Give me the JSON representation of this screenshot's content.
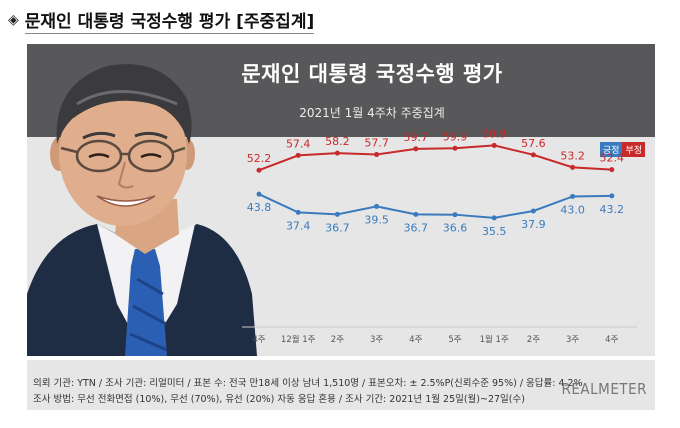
{
  "heading": {
    "marker": "◈",
    "title": "문재인 대통령 국정수행 평가 [주중집계]"
  },
  "chart_data": {
    "type": "line",
    "title": "문재인 대통령 국정수행 평가",
    "subtitle": "2021년 1월 4주차 주중집계",
    "categories": [
      "4주",
      "12월 1주",
      "2주",
      "3주",
      "4주",
      "5주",
      "1월 1주",
      "2주",
      "3주",
      "4주"
    ],
    "series": [
      {
        "name": "긍정",
        "color": "#3a7bbf",
        "values": [
          43.8,
          37.4,
          36.7,
          39.5,
          36.7,
          36.6,
          35.5,
          37.9,
          43.0,
          43.2
        ]
      },
      {
        "name": "부정",
        "color": "#c8292b",
        "values": [
          52.2,
          57.4,
          58.2,
          57.7,
          59.7,
          59.9,
          60.9,
          57.6,
          53.2,
          52.4
        ]
      }
    ],
    "value_labels": {
      "positive": [
        "43.8",
        "37.4",
        "36.7",
        "39.5",
        "36.7",
        "36.6",
        "35.5",
        "37.9",
        "43.0",
        "43.2"
      ],
      "negative": [
        "52.2",
        "57.4",
        "58.2",
        "57.7",
        "59.7",
        "59.9",
        "60.9",
        "57.6",
        "53.2",
        "52.4"
      ]
    },
    "legend": {
      "positive": "긍정",
      "negative": "부정",
      "position": "top-right"
    },
    "ylim": [
      0,
      80
    ],
    "grid": false
  },
  "footer": {
    "line1": "의뢰 기관: YTN / 조사 기관: 리얼미터 / 표본 수: 전국 만18세 이상 남녀 1,510명 / 표본오차: ± 2.5%P(신뢰수준 95%) / 응답률: 4.2%",
    "line2": "조사 방법: 무선 전화면접 (10%), 무선 (70%), 유선 (20%)  자동 응답 혼용 / 조사 기간: 2021년 1월 25일(월)~27일(수)",
    "brand": "REALMETER"
  },
  "colors": {
    "panel": "#e6e6e6",
    "band": "#58585a",
    "positive": "#3a7bbf",
    "negative": "#c8292b",
    "label_negative": "#c8292b",
    "label_positive": "#3a7bbf"
  }
}
